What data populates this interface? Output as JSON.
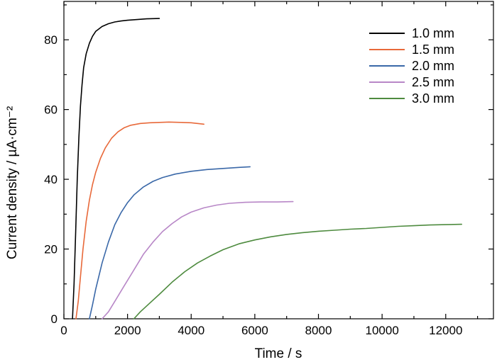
{
  "chart_data": {
    "type": "line",
    "xlabel": "Time / s",
    "ylabel": "Current density / µA·cm⁻²",
    "xlim": [
      0,
      13500
    ],
    "ylim": [
      0,
      91
    ],
    "xticks": [
      0,
      2000,
      4000,
      6000,
      8000,
      10000,
      12000
    ],
    "yticks": [
      0,
      20,
      40,
      60,
      80
    ],
    "x_minor_step": 1000,
    "y_minor_step": 10,
    "grid": false,
    "legend_position": "top-right",
    "series": [
      {
        "name": "1.0 mm",
        "color": "#000000",
        "points": [
          [
            270,
            0
          ],
          [
            320,
            10
          ],
          [
            370,
            25
          ],
          [
            420,
            40
          ],
          [
            470,
            52
          ],
          [
            520,
            61
          ],
          [
            570,
            67
          ],
          [
            620,
            72
          ],
          [
            700,
            76
          ],
          [
            800,
            79
          ],
          [
            900,
            81
          ],
          [
            1000,
            82.4
          ],
          [
            1200,
            83.8
          ],
          [
            1400,
            84.6
          ],
          [
            1600,
            85.1
          ],
          [
            1800,
            85.4
          ],
          [
            2000,
            85.6
          ],
          [
            2300,
            85.8
          ],
          [
            2600,
            86.0
          ],
          [
            3000,
            86.1
          ]
        ]
      },
      {
        "name": "1.5 mm",
        "color": "#e8693a",
        "points": [
          [
            380,
            0
          ],
          [
            450,
            5
          ],
          [
            520,
            12
          ],
          [
            600,
            20
          ],
          [
            700,
            28
          ],
          [
            800,
            34
          ],
          [
            900,
            38.5
          ],
          [
            1000,
            42
          ],
          [
            1150,
            46
          ],
          [
            1300,
            49
          ],
          [
            1500,
            51.8
          ],
          [
            1700,
            53.6
          ],
          [
            1900,
            54.8
          ],
          [
            2100,
            55.5
          ],
          [
            2400,
            56
          ],
          [
            2700,
            56.2
          ],
          [
            3000,
            56.3
          ],
          [
            3300,
            56.4
          ],
          [
            3700,
            56.3
          ],
          [
            4000,
            56.2
          ],
          [
            4400,
            55.8
          ]
        ]
      },
      {
        "name": "2.0 mm",
        "color": "#3a68a8",
        "points": [
          [
            800,
            0
          ],
          [
            900,
            4
          ],
          [
            1000,
            8.5
          ],
          [
            1200,
            16
          ],
          [
            1400,
            22
          ],
          [
            1600,
            27
          ],
          [
            1800,
            30.5
          ],
          [
            2000,
            33.3
          ],
          [
            2200,
            35.5
          ],
          [
            2500,
            37.8
          ],
          [
            2800,
            39.4
          ],
          [
            3100,
            40.5
          ],
          [
            3500,
            41.5
          ],
          [
            4000,
            42.3
          ],
          [
            4500,
            42.8
          ],
          [
            5000,
            43.1
          ],
          [
            5500,
            43.4
          ],
          [
            5850,
            43.6
          ]
        ]
      },
      {
        "name": "2.5 mm",
        "color": "#b887c7",
        "points": [
          [
            1200,
            0
          ],
          [
            1400,
            2
          ],
          [
            1600,
            5
          ],
          [
            1900,
            9.5
          ],
          [
            2200,
            14
          ],
          [
            2500,
            18.5
          ],
          [
            2800,
            22
          ],
          [
            3100,
            25
          ],
          [
            3400,
            27.3
          ],
          [
            3700,
            29.2
          ],
          [
            4000,
            30.6
          ],
          [
            4400,
            31.8
          ],
          [
            4800,
            32.6
          ],
          [
            5200,
            33.1
          ],
          [
            5700,
            33.4
          ],
          [
            6200,
            33.5
          ],
          [
            6700,
            33.5
          ],
          [
            7200,
            33.6
          ]
        ]
      },
      {
        "name": "3.0 mm",
        "color": "#4e8b3f",
        "points": [
          [
            2200,
            0
          ],
          [
            2400,
            2
          ],
          [
            2700,
            4.5
          ],
          [
            3000,
            7
          ],
          [
            3400,
            10.5
          ],
          [
            3800,
            13.5
          ],
          [
            4200,
            16
          ],
          [
            4600,
            18
          ],
          [
            5000,
            19.8
          ],
          [
            5500,
            21.5
          ],
          [
            6000,
            22.6
          ],
          [
            6500,
            23.5
          ],
          [
            7000,
            24.2
          ],
          [
            7500,
            24.7
          ],
          [
            8000,
            25.1
          ],
          [
            8500,
            25.4
          ],
          [
            9000,
            25.7
          ],
          [
            9500,
            25.9
          ],
          [
            10000,
            26.2
          ],
          [
            10500,
            26.5
          ],
          [
            11000,
            26.7
          ],
          [
            11500,
            26.9
          ],
          [
            12000,
            27.0
          ],
          [
            12500,
            27.1
          ]
        ]
      }
    ]
  }
}
